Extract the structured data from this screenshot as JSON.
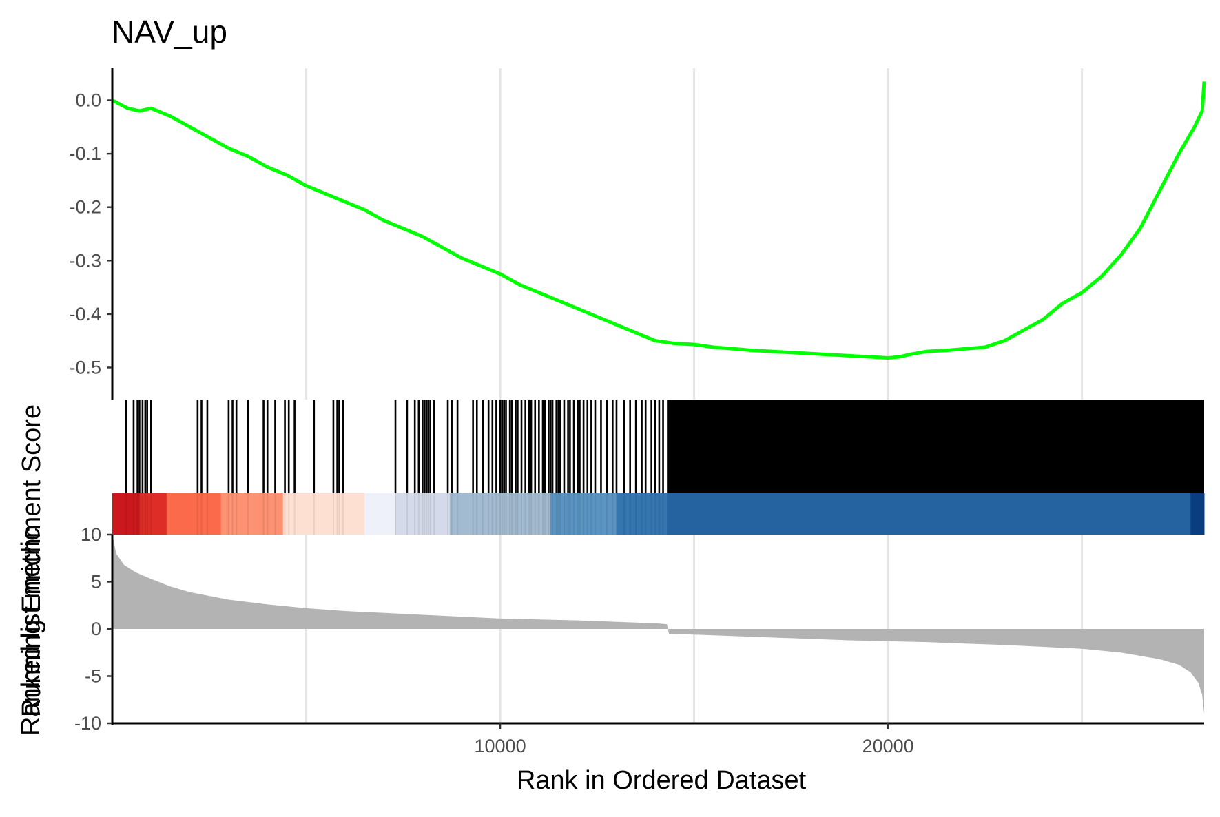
{
  "chart_data": {
    "type": "line",
    "title": "NAV_up",
    "panels": {
      "enrichment": {
        "ylabel": "Running Enrichment Score",
        "ylim": [
          -0.56,
          0.06
        ],
        "yticks": [
          0.0,
          -0.1,
          -0.2,
          -0.3,
          -0.4,
          -0.5
        ],
        "ytick_labels": [
          "0.0",
          "-0.1",
          "-0.2",
          "-0.3",
          "-0.4",
          "-0.5"
        ],
        "series": [
          {
            "color": "#00ff00",
            "x": [
              0,
              400,
              700,
              1000,
              1500,
              2000,
              2500,
              3000,
              3500,
              4000,
              4500,
              5000,
              5500,
              6000,
              6500,
              7000,
              7500,
              8000,
              8500,
              9000,
              9500,
              10000,
              10500,
              11000,
              11500,
              12000,
              12500,
              13000,
              13500,
              14000,
              14500,
              15000,
              15500,
              16000,
              16500,
              17000,
              17500,
              18000,
              18500,
              19000,
              19500,
              20000,
              20300,
              20600,
              21000,
              21500,
              22000,
              22500,
              23000,
              23500,
              24000,
              24500,
              25000,
              25500,
              26000,
              26500,
              27000,
              27500,
              27900,
              28100,
              28150
            ],
            "y": [
              0.0,
              -0.015,
              -0.02,
              -0.015,
              -0.03,
              -0.05,
              -0.07,
              -0.09,
              -0.105,
              -0.125,
              -0.14,
              -0.16,
              -0.175,
              -0.19,
              -0.205,
              -0.225,
              -0.24,
              -0.255,
              -0.275,
              -0.295,
              -0.31,
              -0.325,
              -0.345,
              -0.36,
              -0.375,
              -0.39,
              -0.405,
              -0.42,
              -0.435,
              -0.45,
              -0.455,
              -0.457,
              -0.462,
              -0.465,
              -0.468,
              -0.47,
              -0.472,
              -0.474,
              -0.476,
              -0.478,
              -0.48,
              -0.482,
              -0.48,
              -0.475,
              -0.47,
              -0.468,
              -0.465,
              -0.462,
              -0.45,
              -0.43,
              -0.41,
              -0.38,
              -0.36,
              -0.33,
              -0.29,
              -0.24,
              -0.17,
              -0.1,
              -0.05,
              -0.02,
              0.035
            ]
          }
        ]
      },
      "hits": {
        "color": "#000000",
        "hit_ranks": [
          350,
          550,
          650,
          700,
          780,
          850,
          900,
          1000,
          2200,
          2300,
          2450,
          3000,
          3100,
          3200,
          3500,
          3900,
          4000,
          4200,
          4450,
          4550,
          4700,
          5200,
          5700,
          5800,
          5850,
          5950,
          7300,
          7600,
          7800,
          7900,
          8000,
          8050,
          8100,
          8150,
          8200,
          8300,
          8650,
          8750,
          8900,
          9300,
          9400,
          9550,
          9700,
          9800,
          9900,
          10000,
          10050,
          10100,
          10150,
          10250,
          10300,
          10400,
          10450,
          10550,
          10650,
          10750,
          10800,
          10900,
          11000,
          11100,
          11150,
          11250,
          11300,
          11350,
          11450,
          11500,
          11550,
          11650,
          11750,
          11800,
          11900,
          12000,
          12050,
          12150,
          12250,
          12350,
          12450,
          12600,
          12750,
          12900,
          13000,
          13200,
          13350,
          13500,
          13650,
          13750,
          13900,
          14000,
          14100,
          14200
        ],
        "dense_range": [
          14300,
          28150
        ]
      },
      "heatmap": {
        "segments": [
          {
            "from": 0,
            "to": 700,
            "color": "#cb181d"
          },
          {
            "from": 700,
            "to": 1400,
            "color": "#de2d26"
          },
          {
            "from": 1400,
            "to": 2800,
            "color": "#fb6a4a"
          },
          {
            "from": 2800,
            "to": 4400,
            "color": "#fc9272"
          },
          {
            "from": 4400,
            "to": 6500,
            "color": "#fee0d2"
          },
          {
            "from": 6500,
            "to": 7300,
            "color": "#eef0fa"
          },
          {
            "from": 7300,
            "to": 8700,
            "color": "#d4dae9"
          },
          {
            "from": 8700,
            "to": 11300,
            "color": "#a3bbd0"
          },
          {
            "from": 11300,
            "to": 13000,
            "color": "#5a94c2"
          },
          {
            "from": 13000,
            "to": 14300,
            "color": "#3575b0"
          },
          {
            "from": 14300,
            "to": 27800,
            "color": "#2563a0"
          },
          {
            "from": 27800,
            "to": 28150,
            "color": "#0a3c80"
          }
        ]
      },
      "metric": {
        "type": "area",
        "color": "#b3b3b3",
        "ylabel": "Ranked list metric",
        "ylim": [
          -10,
          10
        ],
        "yticks": [
          10,
          5,
          0,
          -5,
          -10
        ],
        "ytick_labels": [
          "10",
          "5",
          "0",
          "-5",
          "-10"
        ],
        "x": [
          0,
          100,
          300,
          600,
          1000,
          1500,
          2000,
          3000,
          4000,
          5000,
          6000,
          8000,
          10000,
          12000,
          14000,
          14300,
          14350,
          15000,
          17000,
          19000,
          21000,
          23000,
          25000,
          26000,
          27000,
          27500,
          27800,
          28000,
          28100,
          28150
        ],
        "values": [
          10.0,
          8.0,
          6.8,
          6.0,
          5.3,
          4.5,
          3.9,
          3.1,
          2.6,
          2.2,
          1.9,
          1.5,
          1.1,
          0.9,
          0.6,
          0.5,
          -0.5,
          -0.6,
          -0.9,
          -1.2,
          -1.4,
          -1.7,
          -2.1,
          -2.5,
          -3.2,
          -3.8,
          -4.6,
          -5.7,
          -7.0,
          -9.0
        ]
      }
    },
    "x_axis": {
      "label": "Rank in Ordered Dataset",
      "xlim": [
        0,
        28150
      ],
      "ticks": [
        10000,
        20000
      ],
      "tick_labels": [
        "10000",
        "20000"
      ],
      "minor_gridlines": [
        5000,
        15000,
        25000
      ]
    },
    "grid": true
  }
}
